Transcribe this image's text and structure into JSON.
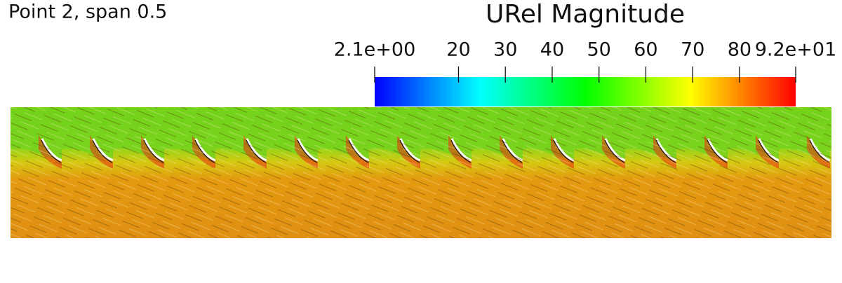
{
  "label": "Point 2, span 0.5",
  "colorbar": {
    "title": "URel Magnitude",
    "range": [
      2.1,
      92
    ],
    "colors": [
      "#0000ff",
      "#00ffff",
      "#00ff00",
      "#ffff00",
      "#ff0000"
    ],
    "ticks": [
      {
        "value": 2.1,
        "label": "2.1e+00"
      },
      20,
      30,
      40,
      50,
      60,
      70,
      80,
      {
        "value": 92,
        "label": "9.2e+01"
      }
    ]
  }
}
